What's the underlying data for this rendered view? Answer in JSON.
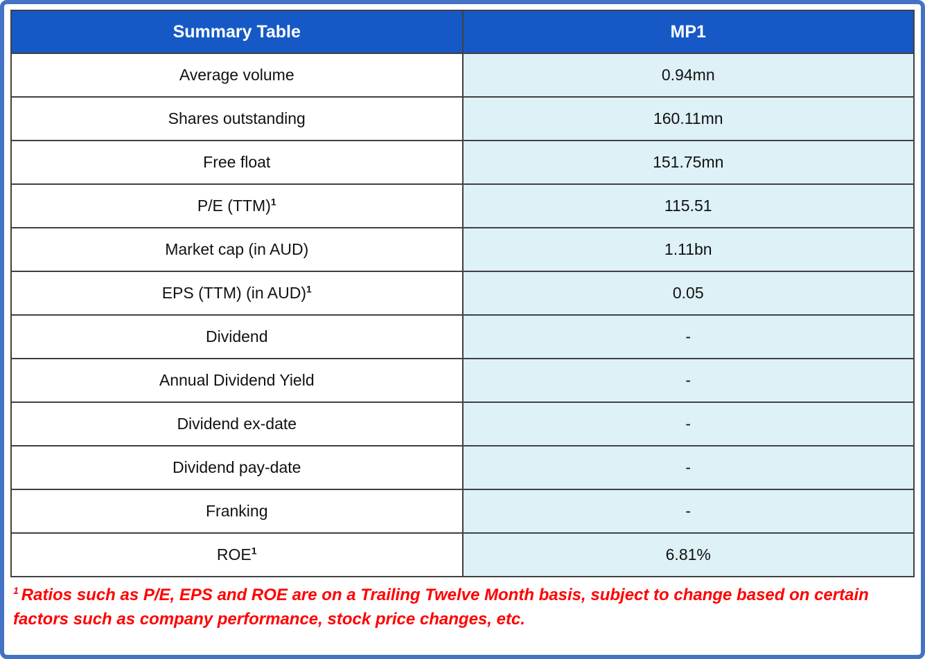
{
  "theme": {
    "header_bg": "#1659c6",
    "header_text": "#ffffff",
    "label_col_bg": "#ffffff",
    "value_col_bg": "#ddf1f6",
    "cell_border": "#404040",
    "outer_border": "#4472c4",
    "footnote_color": "#ff0000",
    "body_text": "#111111"
  },
  "chart_data": {
    "type": "table",
    "title": "Summary Table",
    "columns": [
      "Summary Table",
      "MP1"
    ],
    "rows": [
      [
        "Average volume",
        "0.94mn"
      ],
      [
        "Shares outstanding",
        "160.11mn"
      ],
      [
        "Free float",
        "151.75mn"
      ],
      [
        "P/E (TTM)¹",
        "115.51"
      ],
      [
        "Market cap (in AUD)",
        "1.11bn"
      ],
      [
        "EPS (TTM) (in AUD)¹",
        "0.05"
      ],
      [
        "Dividend",
        "-"
      ],
      [
        "Annual Dividend Yield",
        "-"
      ],
      [
        "Dividend ex-date",
        "-"
      ],
      [
        "Dividend pay-date",
        "-"
      ],
      [
        "Franking",
        "-"
      ],
      [
        "ROE¹",
        "6.81%"
      ]
    ]
  },
  "table": {
    "header_label": "Summary Table",
    "header_ticker": "MP1",
    "rows": [
      {
        "label": "Average volume",
        "sup": "",
        "value": "0.94mn"
      },
      {
        "label": "Shares outstanding",
        "sup": "",
        "value": "160.11mn"
      },
      {
        "label": "Free float",
        "sup": "",
        "value": "151.75mn"
      },
      {
        "label": "P/E (TTM)",
        "sup": "1",
        "value": "115.51"
      },
      {
        "label": "Market cap (in AUD)",
        "sup": "",
        "value": "1.11bn"
      },
      {
        "label": "EPS (TTM) (in AUD)",
        "sup": "1",
        "value": "0.05"
      },
      {
        "label": "Dividend",
        "sup": "",
        "value": "-"
      },
      {
        "label": "Annual Dividend Yield",
        "sup": "",
        "value": "-"
      },
      {
        "label": "Dividend ex-date",
        "sup": "",
        "value": "-"
      },
      {
        "label": "Dividend pay-date",
        "sup": "",
        "value": "-"
      },
      {
        "label": "Franking",
        "sup": "",
        "value": "-"
      },
      {
        "label": "ROE",
        "sup": "1",
        "value": "6.81%"
      }
    ]
  },
  "footnote": {
    "sup": "1",
    "text": "Ratios such as P/E, EPS and ROE are on a Trailing Twelve Month basis, subject to change based on certain factors such as company performance, stock price changes, etc."
  }
}
